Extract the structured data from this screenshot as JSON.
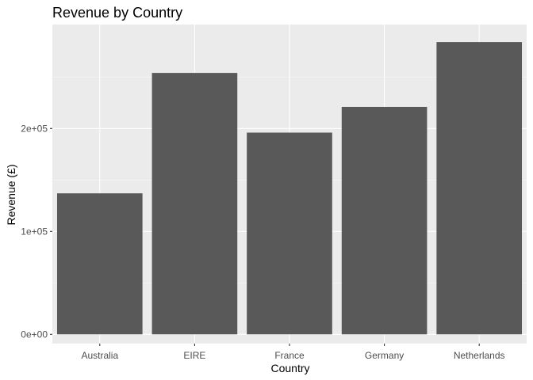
{
  "chart_data": {
    "type": "bar",
    "title": "Revenue by Country",
    "xlabel": "Country",
    "ylabel": "Revenue (£)",
    "categories": [
      "Australia",
      "EIRE",
      "France",
      "Germany",
      "Netherlands"
    ],
    "values": [
      137000,
      254000,
      196000,
      221000,
      284000
    ],
    "ylim": [
      -9000,
      301000
    ],
    "yticks": [
      0,
      100000,
      200000
    ],
    "ytick_labels": [
      "0e+00",
      "1e+05",
      "2e+05"
    ],
    "grid": true,
    "colors": {
      "bar": "#595959",
      "panel_background": "#EBEBEB",
      "grid_major": "#FFFFFF",
      "grid_minor": "#F5F5F5",
      "tick": "#333333",
      "tick_text": "#4D4D4D"
    }
  }
}
